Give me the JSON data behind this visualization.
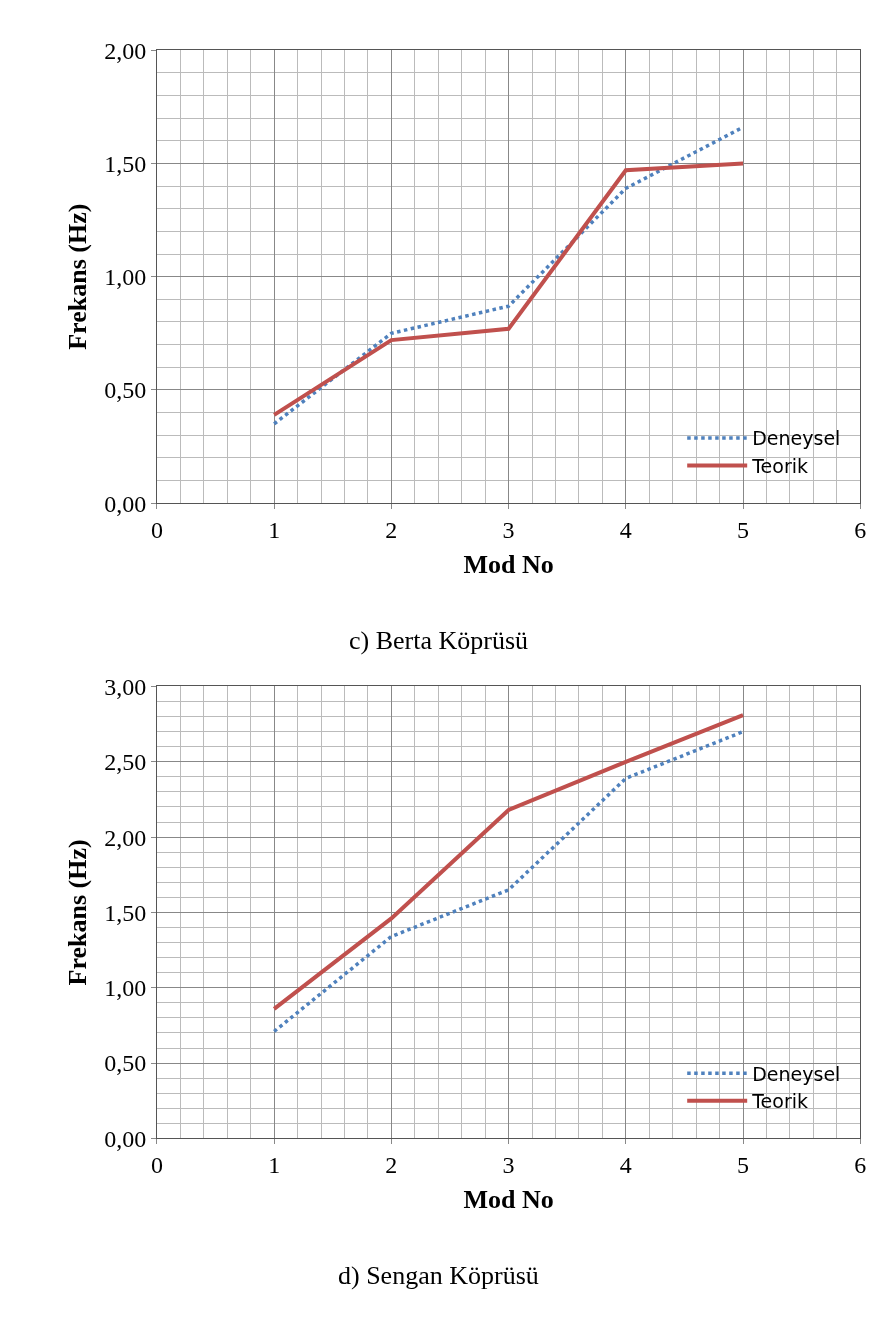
{
  "chart_data": [
    {
      "type": "line",
      "x": [
        1,
        2,
        3,
        4,
        5
      ],
      "xlabel": "Mod No",
      "ylabel": "Frekans (Hz)",
      "xlim": [
        0,
        6
      ],
      "xticks": [
        0,
        1,
        2,
        3,
        4,
        5,
        6
      ],
      "ylim": [
        0,
        2
      ],
      "yticks": [
        {
          "value": 0,
          "label": "0,00"
        },
        {
          "value": 0.5,
          "label": "0,50"
        },
        {
          "value": 1,
          "label": "1,00"
        },
        {
          "value": 1.5,
          "label": "1,50"
        },
        {
          "value": 2,
          "label": "2,00"
        }
      ],
      "grid": true,
      "legend": "bottom right",
      "marker": "none",
      "annotations": [
        "c) Berta Köprüsü"
      ],
      "series": [
        {
          "name": "Deneysel",
          "color": "#4f81bd",
          "line_style": "dotted",
          "values": [
            0.35,
            0.75,
            0.87,
            1.39,
            1.66
          ]
        },
        {
          "name": "Teorik",
          "color": "#c0504d",
          "line_style": "solid",
          "values": [
            0.39,
            0.72,
            0.77,
            1.47,
            1.5
          ]
        }
      ]
    },
    {
      "type": "line",
      "x": [
        1,
        2,
        3,
        4,
        5
      ],
      "xlabel": "Mod No",
      "ylabel": "Frekans (Hz)",
      "xlim": [
        0,
        6
      ],
      "xticks": [
        0,
        1,
        2,
        3,
        4,
        5,
        6
      ],
      "ylim": [
        0,
        3
      ],
      "yticks": [
        {
          "value": 0,
          "label": "0,00"
        },
        {
          "value": 0.5,
          "label": "0,50"
        },
        {
          "value": 1,
          "label": "1,00"
        },
        {
          "value": 1.5,
          "label": "1,50"
        },
        {
          "value": 2,
          "label": "2,00"
        },
        {
          "value": 2.5,
          "label": "2,50"
        },
        {
          "value": 3,
          "label": "3,00"
        }
      ],
      "grid": true,
      "legend": "bottom right",
      "marker": "none",
      "annotations": [
        "d) Sengan Köprüsü"
      ],
      "series": [
        {
          "name": "Deneysel",
          "color": "#4f81bd",
          "line_style": "dotted",
          "values": [
            0.71,
            1.34,
            1.65,
            2.39,
            2.7
          ]
        },
        {
          "name": "Teorik",
          "color": "#c0504d",
          "line_style": "solid",
          "values": [
            0.86,
            1.46,
            2.18,
            2.5,
            2.81
          ]
        }
      ]
    }
  ]
}
